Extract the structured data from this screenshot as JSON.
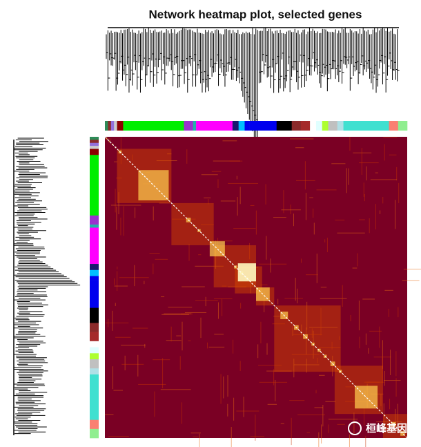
{
  "chart_data": {
    "type": "heatmap",
    "title": "Network heatmap plot, selected genes"
  },
  "watermark": "桓峰基因"
}
